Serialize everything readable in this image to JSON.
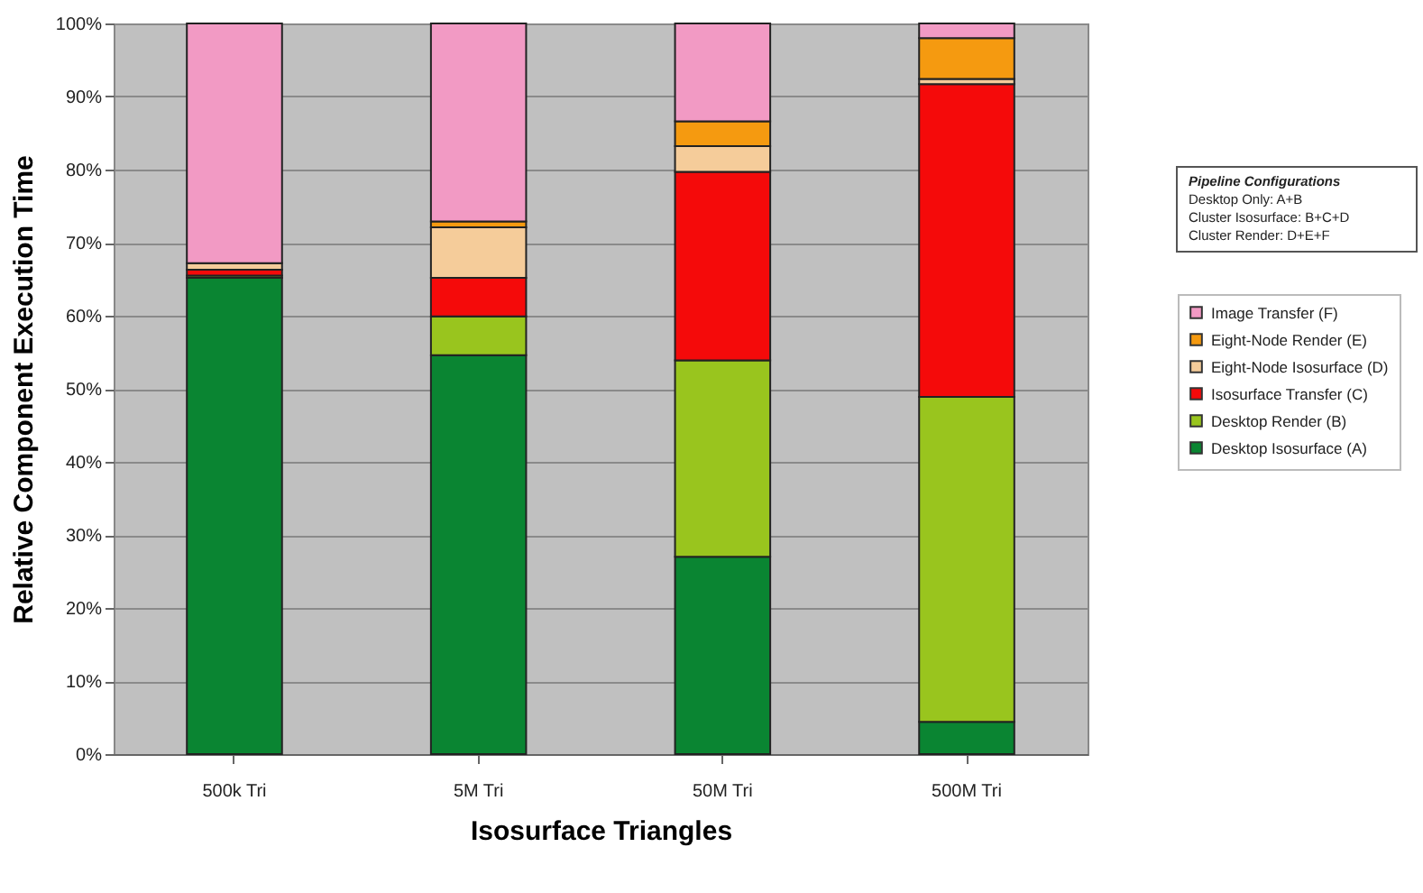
{
  "chart_data": {
    "type": "bar",
    "stacked": true,
    "xlabel": "Isosurface Triangles",
    "ylabel": "Relative Component Execution Time",
    "categories": [
      "500k Tri",
      "5M Tri",
      "50M Tri",
      "500M Tri"
    ],
    "series": [
      {
        "name": "Desktop Isosurface (A)",
        "color": "#0a8532",
        "values": [
          65.2,
          54.6,
          27.0,
          4.4
        ]
      },
      {
        "name": "Desktop Render (B)",
        "color": "#99c51e",
        "values": [
          0.3,
          5.3,
          26.9,
          44.5
        ]
      },
      {
        "name": "Isosurface Transfer (C)",
        "color": "#f50a0a",
        "values": [
          0.8,
          5.3,
          25.8,
          42.8
        ]
      },
      {
        "name": "Eight-Node Isosurface (D)",
        "color": "#f5cc9a",
        "values": [
          0.9,
          6.9,
          3.5,
          0.7
        ]
      },
      {
        "name": "Eight-Node Render (E)",
        "color": "#f59a10",
        "values": [
          null,
          0.8,
          3.4,
          5.6
        ]
      },
      {
        "name": "Image Transfer (F)",
        "color": "#f29ac4",
        "values": [
          32.8,
          27.1,
          13.4,
          2.0
        ]
      }
    ],
    "ylim": [
      0,
      100
    ],
    "yticks": [
      {
        "value": 0,
        "label": "0%"
      },
      {
        "value": 10,
        "label": "10%"
      },
      {
        "value": 20,
        "label": "20%"
      },
      {
        "value": 30,
        "label": "30%"
      },
      {
        "value": 40,
        "label": "40%"
      },
      {
        "value": 50,
        "label": "50%"
      },
      {
        "value": 60,
        "label": "60%"
      },
      {
        "value": 70,
        "label": "70%"
      },
      {
        "value": 80,
        "label": "80%"
      },
      {
        "value": 90,
        "label": "90%"
      },
      {
        "value": 100,
        "label": "100%"
      }
    ],
    "grid": "y",
    "legend": "right",
    "annotations": [
      "Pipeline Configurations",
      "Desktop Only: A+B",
      "Cluster Isosurface: B+C+D",
      "Cluster Render: D+E+F"
    ]
  }
}
